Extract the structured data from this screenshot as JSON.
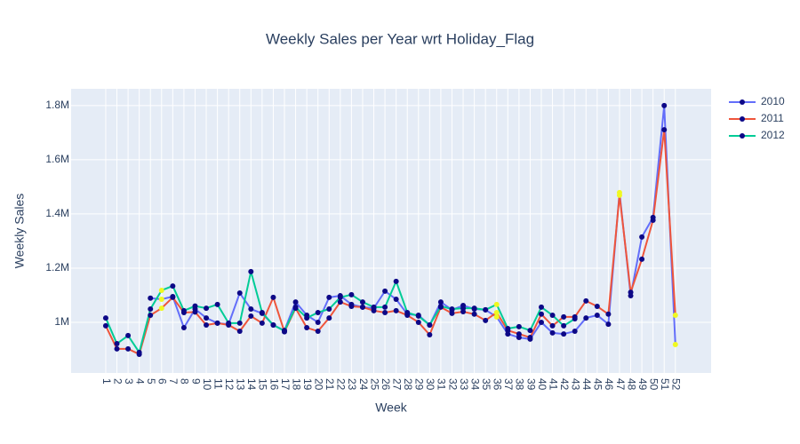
{
  "chart_data": {
    "type": "line",
    "title": "Weekly Sales per Year wrt Holiday_Flag",
    "xlabel": "Week",
    "ylabel": "Weekly Sales",
    "x": [
      1,
      2,
      3,
      4,
      5,
      6,
      7,
      8,
      9,
      10,
      11,
      12,
      13,
      14,
      15,
      16,
      17,
      18,
      19,
      20,
      21,
      22,
      23,
      24,
      25,
      26,
      27,
      28,
      29,
      30,
      31,
      32,
      33,
      34,
      35,
      36,
      37,
      38,
      39,
      40,
      41,
      42,
      43,
      44,
      45,
      46,
      47,
      48,
      49,
      50,
      51,
      52
    ],
    "series": [
      {
        "name": "2010",
        "color": "#636efa",
        "values": [
          null,
          null,
          null,
          null,
          1089000,
          1085000,
          1095000,
          980000,
          1049000,
          1016000,
          997000,
          993000,
          1108000,
          1049000,
          1033000,
          990000,
          970000,
          1075000,
          1026000,
          1000000,
          1092000,
          1098000,
          1066000,
          1056000,
          1052000,
          1115000,
          1085000,
          1030000,
          1026000,
          990000,
          1075000,
          1046000,
          1062000,
          1049000,
          1046000,
          1020000,
          957000,
          944000,
          938000,
          1000000,
          961000,
          957000,
          967000,
          1016000,
          1026000,
          993000,
          1479000,
          1098000,
          1315000,
          1387000,
          1800000,
          918000
        ]
      },
      {
        "name": "2011",
        "color": "#ef553b",
        "values": [
          987000,
          902000,
          902000,
          882000,
          1026000,
          1052000,
          1092000,
          1036000,
          1038000,
          990000,
          997000,
          990000,
          967000,
          1023000,
          997000,
          1092000,
          965000,
          1052000,
          980000,
          967000,
          1016000,
          1075000,
          1059000,
          1056000,
          1043000,
          1036000,
          1043000,
          1026000,
          1000000,
          954000,
          1056000,
          1033000,
          1039000,
          1030000,
          1007000,
          1036000,
          970000,
          957000,
          944000,
          1030000,
          987000,
          1020000,
          1020000,
          1079000,
          1059000,
          1030000,
          1469000,
          1111000,
          1233000,
          1377000,
          1711000,
          1026000
        ]
      },
      {
        "name": "2012",
        "color": "#00cc96",
        "values": [
          1016000,
          921000,
          951000,
          889000,
          1049000,
          1118000,
          1134000,
          1043000,
          1060000,
          1052000,
          1066000,
          997000,
          997000,
          1187000,
          1036000,
          990000,
          968000,
          1056000,
          1016000,
          1036000,
          1049000,
          1092000,
          1102000,
          1075000,
          1056000,
          1056000,
          1151000,
          1036000,
          1023000,
          990000,
          1059000,
          1049000,
          1052000,
          1052000,
          1046000,
          1066000,
          977000,
          984000,
          970000,
          1056000,
          1026000,
          987000,
          1013000,
          null,
          null,
          null,
          null,
          null,
          null,
          null,
          null,
          null
        ]
      }
    ],
    "marker_color": "#0d0887",
    "holiday_marker_color": "#f0f921",
    "holiday_weeks": [
      6,
      36,
      47,
      52
    ],
    "xlim": [
      -2.1,
      55.2
    ],
    "xticks": [
      1,
      2,
      3,
      4,
      5,
      6,
      7,
      8,
      9,
      10,
      11,
      12,
      13,
      14,
      15,
      16,
      17,
      18,
      19,
      20,
      21,
      22,
      23,
      24,
      25,
      26,
      27,
      28,
      29,
      30,
      31,
      32,
      33,
      34,
      35,
      36,
      37,
      38,
      39,
      40,
      41,
      42,
      43,
      44,
      45,
      46,
      47,
      48,
      49,
      50,
      51,
      52
    ],
    "ylim": [
      813000,
      1862000
    ],
    "yticks": [
      {
        "value": 1000000,
        "label": "1M"
      },
      {
        "value": 1200000,
        "label": "1.2M"
      },
      {
        "value": 1400000,
        "label": "1.4M"
      },
      {
        "value": 1600000,
        "label": "1.6M"
      },
      {
        "value": 1800000,
        "label": "1.8M"
      }
    ],
    "grid": true,
    "legend": "right"
  }
}
